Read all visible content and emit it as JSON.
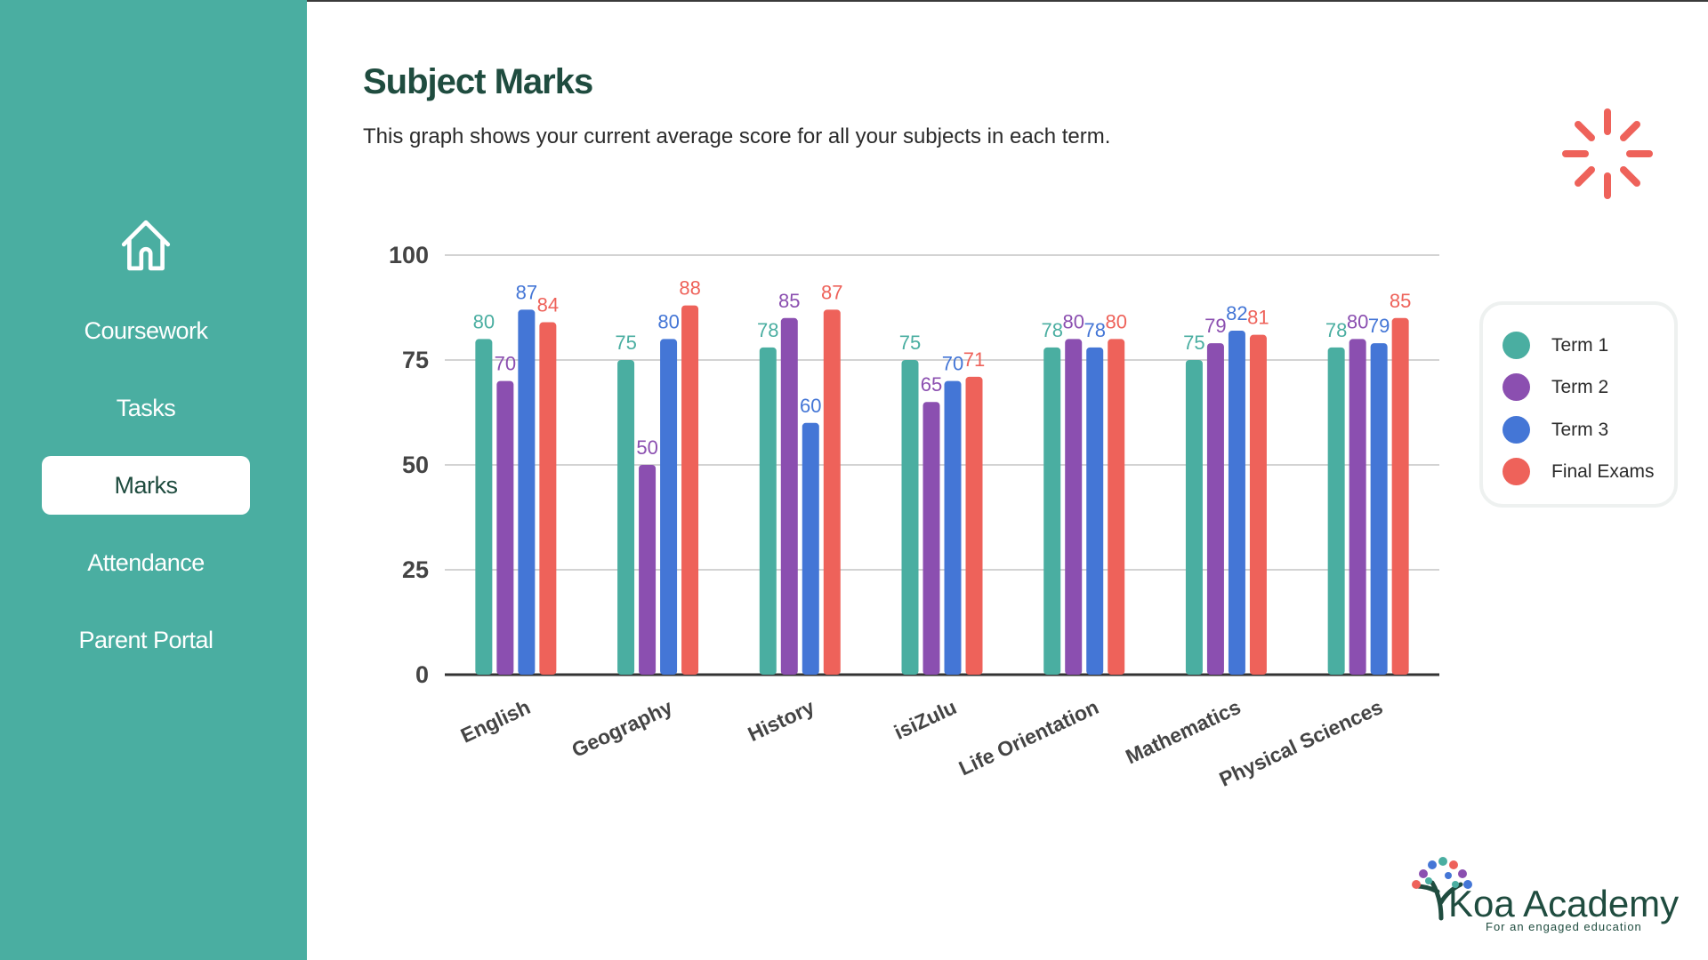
{
  "sidebar": {
    "home_icon": "home-icon",
    "items": [
      {
        "label": "Coursework",
        "active": false
      },
      {
        "label": "Tasks",
        "active": false
      },
      {
        "label": "Marks",
        "active": true
      },
      {
        "label": "Attendance",
        "active": false
      },
      {
        "label": "Parent Portal",
        "active": false
      }
    ]
  },
  "header": {
    "title": "Subject Marks",
    "subtitle": "This graph shows your current average score for all your subjects in each term.",
    "decoration_icon": "sunburst-icon"
  },
  "colors": {
    "sidebar": "#4aaea1",
    "title": "#1f4c3f",
    "term1": "#4aaea1",
    "term2": "#8b4fb0",
    "term3": "#4476d6",
    "final": "#ee625a",
    "accent": "#ee625a"
  },
  "legend": {
    "items": [
      {
        "label": "Term 1",
        "color": "#4aaea1"
      },
      {
        "label": "Term 2",
        "color": "#8b4fb0"
      },
      {
        "label": "Term 3",
        "color": "#4476d6"
      },
      {
        "label": "Final Exams",
        "color": "#ee625a"
      }
    ]
  },
  "chart_data": {
    "type": "bar",
    "title": "",
    "xlabel": "",
    "ylabel": "",
    "ylim": [
      0,
      100
    ],
    "yticks": [
      0,
      25,
      50,
      75,
      100
    ],
    "grid": true,
    "legend_position": "right",
    "categories": [
      "English",
      "Geography",
      "History",
      "isiZulu",
      "Life Orientation",
      "Mathematics",
      "Physical Sciences"
    ],
    "series": [
      {
        "name": "Term 1",
        "color": "#4aaea1",
        "values": [
          80,
          75,
          78,
          75,
          78,
          75,
          78
        ]
      },
      {
        "name": "Term 2",
        "color": "#8b4fb0",
        "values": [
          70,
          50,
          85,
          65,
          80,
          79,
          80
        ]
      },
      {
        "name": "Term 3",
        "color": "#4476d6",
        "values": [
          87,
          80,
          60,
          70,
          78,
          82,
          79
        ]
      },
      {
        "name": "Final Exams",
        "color": "#ee625a",
        "values": [
          84,
          88,
          87,
          71,
          80,
          81,
          85
        ]
      }
    ]
  },
  "logo": {
    "name": "Koa Academy",
    "tagline": "For an engaged education",
    "icon": "koa-tree-logo-icon"
  }
}
